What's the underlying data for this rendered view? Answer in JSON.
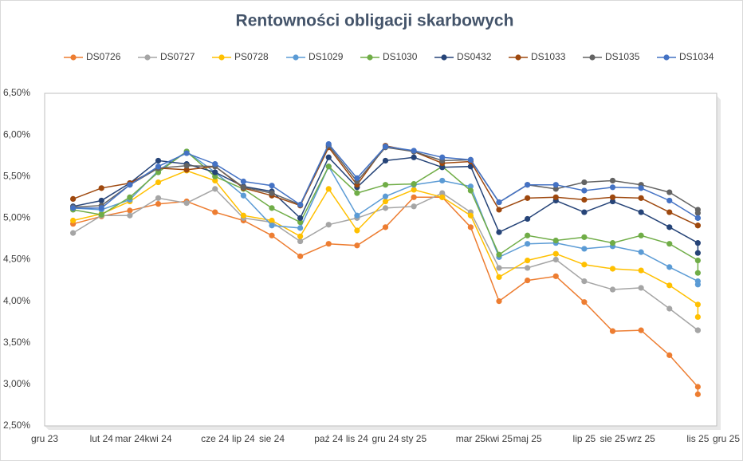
{
  "chart_data": {
    "type": "line",
    "title": "Rentowności obligacji skarbowych",
    "x": [
      "2024-01",
      "2024-02",
      "2024-03",
      "2024-04",
      "2024-05",
      "2024-06",
      "2024-07",
      "2024-08",
      "2024-09",
      "2024-10",
      "2024-11",
      "2024-12",
      "2025-01",
      "2025-02",
      "2025-03",
      "2025-04",
      "2025-05",
      "2025-06",
      "2025-07",
      "2025-08",
      "2025-09",
      "2025-10",
      "2025-11",
      "2025-11"
    ],
    "xlim": [
      "2023-12",
      "2025-12"
    ],
    "xticks": [
      {
        "value": "2023-12",
        "label": "gru 23"
      },
      {
        "value": "2024-02",
        "label": "lut 24"
      },
      {
        "value": "2024-03",
        "label": "mar 24"
      },
      {
        "value": "2024-04",
        "label": "kwi 24"
      },
      {
        "value": "2024-06",
        "label": "cze 24"
      },
      {
        "value": "2024-07",
        "label": "lip 24"
      },
      {
        "value": "2024-08",
        "label": "sie 24"
      },
      {
        "value": "2024-10",
        "label": "paź 24"
      },
      {
        "value": "2024-11",
        "label": "lis 24"
      },
      {
        "value": "2024-12",
        "label": "gru 24"
      },
      {
        "value": "2025-01",
        "label": "sty 25"
      },
      {
        "value": "2025-03",
        "label": "mar 25"
      },
      {
        "value": "2025-04",
        "label": "kwi 25"
      },
      {
        "value": "2025-05",
        "label": "maj 25"
      },
      {
        "value": "2025-07",
        "label": "lip 25"
      },
      {
        "value": "2025-08",
        "label": "sie 25"
      },
      {
        "value": "2025-09",
        "label": "wrz 25"
      },
      {
        "value": "2025-11",
        "label": "lis 25"
      },
      {
        "value": "2025-12",
        "label": "gru 25"
      }
    ],
    "ylim": [
      2.5,
      6.5
    ],
    "yticks": [
      {
        "value": 2.5,
        "label": "2,50%"
      },
      {
        "value": 3,
        "label": "3,00%"
      },
      {
        "value": 3.5,
        "label": "3,50%"
      },
      {
        "value": 4,
        "label": "4,00%"
      },
      {
        "value": 4.5,
        "label": "4,50%"
      },
      {
        "value": 5,
        "label": "5,00%"
      },
      {
        "value": 5.5,
        "label": "5,50%"
      },
      {
        "value": 6,
        "label": "6,00%"
      },
      {
        "value": 6.5,
        "label": "6,50%"
      }
    ],
    "grid": false,
    "legend": "top",
    "series": [
      {
        "name": "DS0726",
        "color": "#ed7d31",
        "values": [
          4.93,
          5.02,
          5.09,
          5.17,
          5.2,
          5.07,
          4.97,
          4.79,
          4.54,
          4.69,
          4.67,
          4.89,
          5.25,
          5.25,
          4.89,
          4.0,
          4.25,
          4.3,
          3.99,
          3.64,
          3.65,
          3.35,
          2.97,
          2.88
        ]
      },
      {
        "name": "DS0727",
        "color": "#a5a5a5",
        "values": [
          4.82,
          5.03,
          5.03,
          5.24,
          5.18,
          5.35,
          5.0,
          4.95,
          4.72,
          4.92,
          5.0,
          5.12,
          5.14,
          5.3,
          5.07,
          4.4,
          4.4,
          4.5,
          4.24,
          4.14,
          4.16,
          3.91,
          3.65,
          3.65
        ]
      },
      {
        "name": "PS0728",
        "color": "#ffc000",
        "values": [
          4.97,
          5.05,
          5.2,
          5.43,
          5.57,
          5.45,
          5.03,
          4.97,
          4.78,
          5.35,
          4.85,
          5.2,
          5.34,
          5.25,
          5.03,
          4.29,
          4.49,
          4.57,
          4.44,
          4.39,
          4.37,
          4.19,
          3.96,
          3.81
        ]
      },
      {
        "name": "DS1029",
        "color": "#5b9bd5",
        "values": [
          5.12,
          5.1,
          5.22,
          5.57,
          5.8,
          5.55,
          5.27,
          4.91,
          4.88,
          5.62,
          5.03,
          5.26,
          5.4,
          5.45,
          5.38,
          4.53,
          4.69,
          4.7,
          4.63,
          4.66,
          4.59,
          4.41,
          4.24,
          4.2
        ]
      },
      {
        "name": "DS1030",
        "color": "#70ad47",
        "values": [
          5.1,
          5.04,
          5.25,
          5.55,
          5.8,
          5.5,
          5.35,
          5.12,
          4.95,
          5.62,
          5.3,
          5.4,
          5.41,
          5.62,
          5.33,
          4.56,
          4.79,
          4.73,
          4.77,
          4.7,
          4.79,
          4.69,
          4.49,
          4.34
        ]
      },
      {
        "name": "DS0432",
        "color": "#264478",
        "values": [
          5.14,
          5.21,
          5.42,
          5.69,
          5.65,
          5.55,
          5.38,
          5.32,
          5.0,
          5.73,
          5.37,
          5.69,
          5.73,
          5.61,
          5.62,
          4.83,
          4.99,
          5.21,
          5.07,
          5.2,
          5.07,
          4.89,
          4.7,
          4.58
        ]
      },
      {
        "name": "DS1033",
        "color": "#9e480e",
        "values": [
          5.23,
          5.36,
          5.42,
          5.6,
          5.58,
          5.62,
          5.36,
          5.27,
          5.15,
          5.85,
          5.4,
          5.87,
          5.8,
          5.66,
          5.68,
          5.1,
          5.24,
          5.25,
          5.22,
          5.25,
          5.24,
          5.07,
          4.91,
          4.91
        ]
      },
      {
        "name": "DS1035",
        "color": "#636363",
        "values": [
          5.13,
          5.15,
          5.4,
          5.6,
          5.63,
          5.62,
          5.37,
          5.3,
          5.16,
          5.87,
          5.44,
          5.85,
          5.8,
          5.69,
          5.7,
          5.19,
          5.4,
          5.35,
          5.43,
          5.45,
          5.4,
          5.31,
          5.1,
          5.06
        ]
      },
      {
        "name": "DS1034",
        "color": "#4472c4",
        "values": [
          5.12,
          5.12,
          5.4,
          5.62,
          5.78,
          5.65,
          5.44,
          5.39,
          5.16,
          5.89,
          5.48,
          5.86,
          5.81,
          5.73,
          5.7,
          5.19,
          5.4,
          5.4,
          5.33,
          5.37,
          5.36,
          5.21,
          5.0,
          5.0
        ]
      }
    ]
  }
}
